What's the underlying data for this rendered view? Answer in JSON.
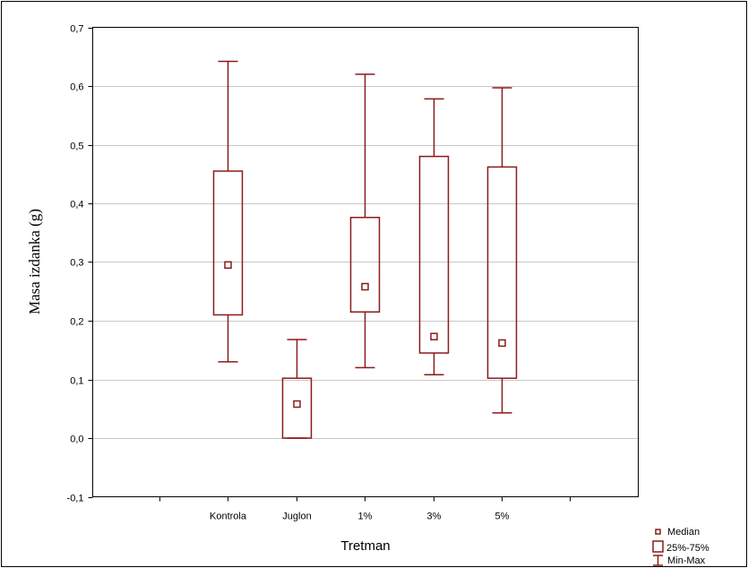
{
  "chart_data": {
    "type": "box",
    "categories": [
      "Kontrola",
      "Juglon",
      "1%",
      "3%",
      "5%"
    ],
    "series": [
      {
        "name": "Masa izdanka",
        "boxes": [
          {
            "category": "Kontrola",
            "min": 0.13,
            "q1": 0.21,
            "median": 0.295,
            "q3": 0.455,
            "max": 0.642
          },
          {
            "category": "Juglon",
            "min": 0.0,
            "q1": 0.0,
            "median": 0.058,
            "q3": 0.102,
            "max": 0.168
          },
          {
            "category": "1%",
            "min": 0.12,
            "q1": 0.215,
            "median": 0.258,
            "q3": 0.376,
            "max": 0.62
          },
          {
            "category": "3%",
            "min": 0.108,
            "q1": 0.145,
            "median": 0.173,
            "q3": 0.48,
            "max": 0.578
          },
          {
            "category": "5%",
            "min": 0.043,
            "q1": 0.102,
            "median": 0.162,
            "q3": 0.462,
            "max": 0.597
          }
        ]
      }
    ],
    "xlabel": "Tretman",
    "ylabel": "Masa izdanka  (g)",
    "ylim": [
      -0.1,
      0.7
    ],
    "yticks": [
      "-0,1",
      "0,0",
      "0,1",
      "0,2",
      "0,3",
      "0,4",
      "0,5",
      "0,6",
      "0,7"
    ],
    "ytick_values": [
      -0.1,
      0.0,
      0.1,
      0.2,
      0.3,
      0.4,
      0.5,
      0.6,
      0.7
    ],
    "grid": true,
    "legend": {
      "placement": "bottom-right",
      "entries": [
        "Median",
        "25%-75%",
        "Min-Max"
      ]
    },
    "colors": {
      "box": "#8b1a1a"
    }
  }
}
